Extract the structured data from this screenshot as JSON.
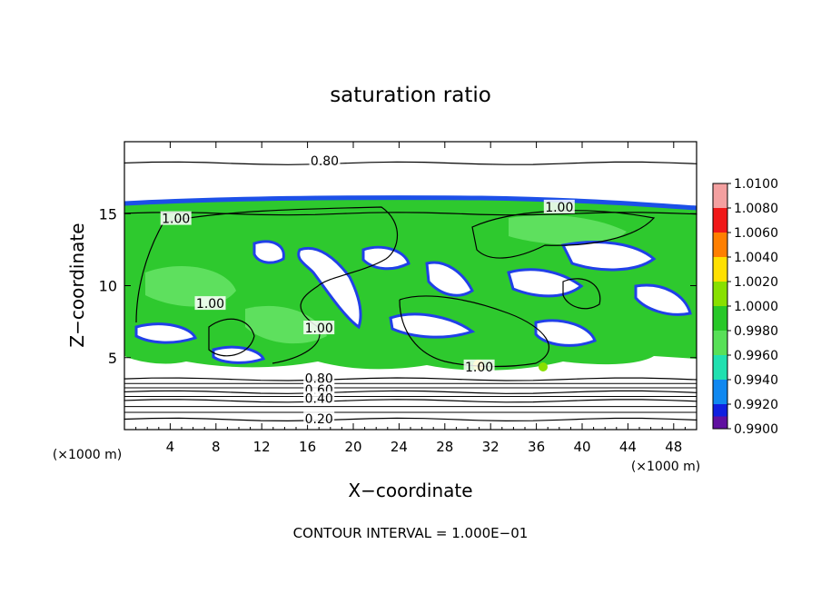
{
  "chart_data": {
    "type": "heatmap",
    "title": "saturation ratio",
    "xlabel": "X−coordinate",
    "ylabel": "Z−coordinate",
    "x_unit": "(×1000 m)",
    "z_unit": "(×1000 m)",
    "xlim": [
      0,
      50
    ],
    "ylim": [
      0,
      20
    ],
    "x_ticks": [
      4,
      8,
      12,
      16,
      20,
      24,
      28,
      32,
      36,
      40,
      44,
      48
    ],
    "y_ticks": [
      5,
      10,
      15
    ],
    "footer": "CONTOUR INTERVAL = 1.000E−01",
    "colorbar": {
      "levels": [
        "1.0100",
        "1.0080",
        "1.0060",
        "1.0040",
        "1.0020",
        "1.0000",
        "0.9980",
        "0.9960",
        "0.9940",
        "0.9920",
        "0.9900"
      ],
      "colors": [
        "#f4a0a0",
        "#f01818",
        "#ff7f00",
        "#ffe000",
        "#88e000",
        "#28c828",
        "#58e058",
        "#20e0b0",
        "#1088f0",
        "#1020e0",
        "#6010a0"
      ]
    },
    "contours": [
      {
        "label": "0.80",
        "z": 18.5
      },
      {
        "label": "1.00",
        "z": 15.0
      },
      {
        "label": "0.80",
        "z": 3.5
      },
      {
        "label": "0.60",
        "z": 2.6
      },
      {
        "label": "0.40",
        "z": 2.0
      },
      {
        "label": "0.20",
        "z": 0.7
      }
    ],
    "contour_labels": [
      {
        "text": "0.80",
        "x": 17.5,
        "z": 18.6
      },
      {
        "text": "1.00",
        "x": 4.5,
        "z": 14.6
      },
      {
        "text": "1.00",
        "x": 38.0,
        "z": 15.4
      },
      {
        "text": "1.00",
        "x": 7.5,
        "z": 8.7
      },
      {
        "text": "1.00",
        "x": 17.0,
        "z": 7.0
      },
      {
        "text": "1.00",
        "x": 31.0,
        "z": 4.3
      },
      {
        "text": "0.80",
        "x": 17.0,
        "z": 3.5
      },
      {
        "text": "0.60",
        "x": 17.0,
        "z": 2.7
      },
      {
        "text": "0.40",
        "x": 17.0,
        "z": 2.1
      },
      {
        "text": "0.20",
        "x": 17.0,
        "z": 0.7
      }
    ]
  }
}
